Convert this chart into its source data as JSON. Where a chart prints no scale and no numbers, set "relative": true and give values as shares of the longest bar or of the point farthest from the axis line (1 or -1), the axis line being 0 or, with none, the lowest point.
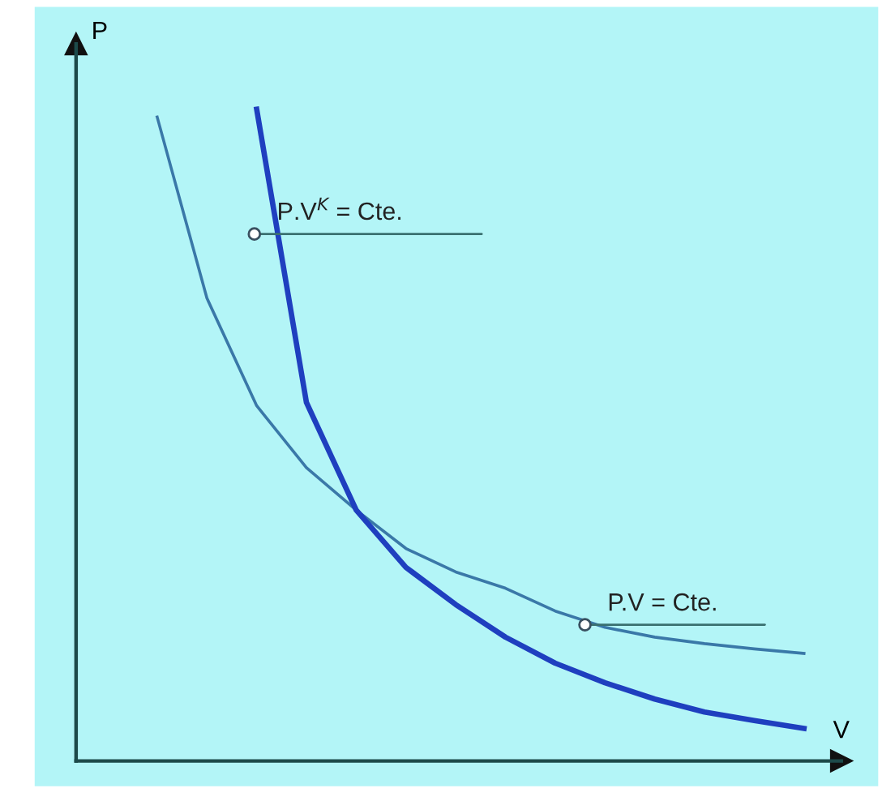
{
  "chart_data": {
    "type": "line",
    "relative": true,
    "xlabel": "V",
    "ylabel": "P",
    "marker": "none",
    "legend": false,
    "categories": [
      null,
      null,
      null,
      null,
      null,
      null,
      null,
      null,
      null,
      null,
      null,
      null,
      null,
      null
    ],
    "series": [
      {
        "color": "#3a78a8",
        "values": [
          0.988,
          0.71,
          0.545,
          0.45,
          0.385,
          0.326,
          0.29,
          0.265,
          0.23,
          0.205,
          0.19,
          0.18,
          0.172,
          0.165
        ]
      },
      {
        "color": "#1f3fbf",
        "values": [
          null,
          null,
          1.0,
          0.55,
          0.385,
          0.297,
          0.24,
          0.19,
          0.15,
          0.12,
          0.095,
          0.075,
          0.062,
          0.05
        ]
      }
    ],
    "annotations": [
      "P.V$^{K}$ = Cte.",
      "P.V = Cte."
    ]
  }
}
